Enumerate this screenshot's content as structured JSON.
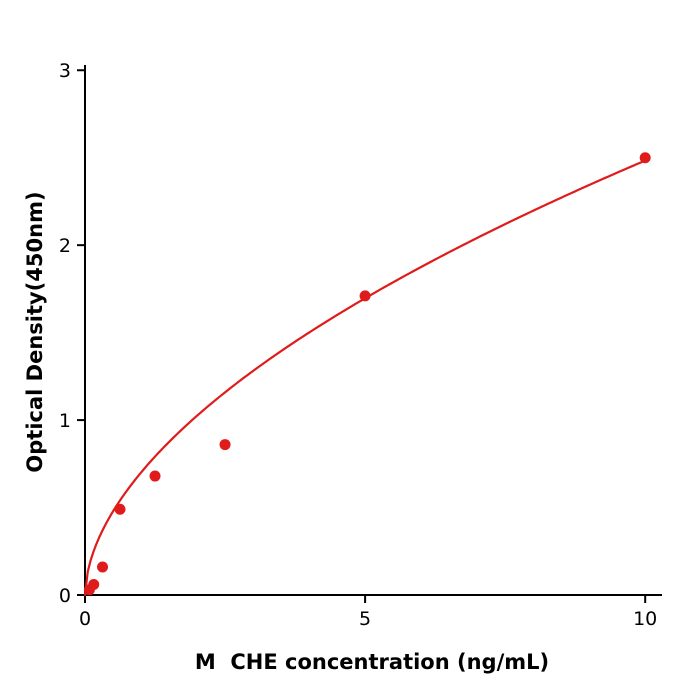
{
  "chart_data": {
    "type": "scatter",
    "title": "",
    "xlabel": "M  CHE concentration (ng/mL)",
    "ylabel": "Optical Density(450nm)",
    "x": [
      0.078,
      0.156,
      0.313,
      0.625,
      1.25,
      2.5,
      5,
      10
    ],
    "y": [
      0.03,
      0.06,
      0.16,
      0.49,
      0.68,
      0.86,
      1.71,
      2.5
    ],
    "xlim": [
      0,
      10.3
    ],
    "ylim": [
      0,
      3.03
    ],
    "xticks": [
      0,
      5,
      10
    ],
    "xtick_labels": [
      "0",
      "5",
      "10"
    ],
    "yticks": [
      0,
      1,
      2,
      3
    ],
    "ytick_labels": [
      "0",
      "1",
      "2",
      "3"
    ],
    "grid": false,
    "legend": false,
    "point_color": "#e01b1b",
    "curve_color": "#e01b1b",
    "axis_color": "#000000",
    "curve_fit": {
      "type": "power",
      "a": 0.7,
      "b": 0.55
    }
  }
}
